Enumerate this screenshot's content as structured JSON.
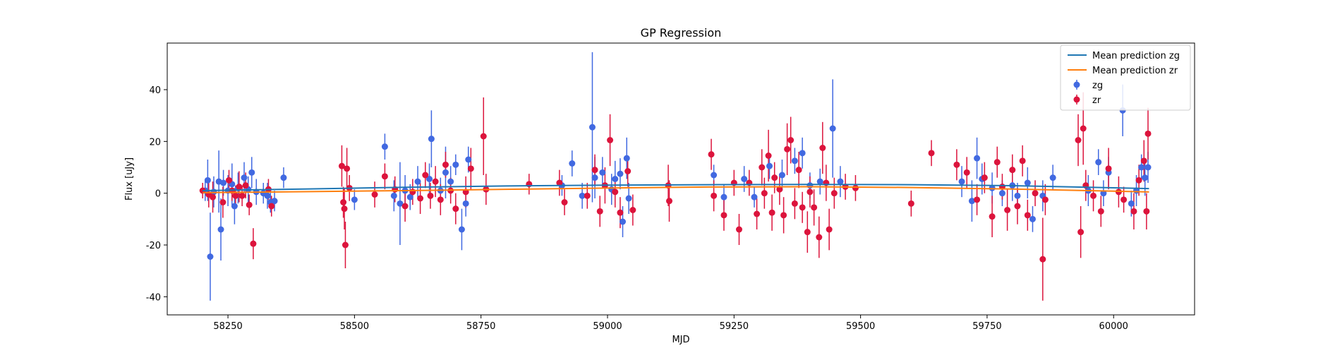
{
  "chart_data": {
    "type": "scatter",
    "title": "GP Regression",
    "xlabel": "MJD",
    "ylabel": "Flux [uJy]",
    "xlim": [
      58130,
      60160
    ],
    "ylim": [
      -47,
      58
    ],
    "xticks": [
      58250,
      58500,
      58750,
      59000,
      59250,
      59500,
      59750,
      60000
    ],
    "yticks": [
      -40,
      -20,
      0,
      20,
      40
    ],
    "grid": false,
    "legend_position": "top-right",
    "legend": [
      {
        "label": "Mean prediction zg",
        "kind": "line",
        "color": "#1f77b4"
      },
      {
        "label": "Mean prediction zr",
        "kind": "line",
        "color": "#ff7f0e"
      },
      {
        "label": "zg",
        "kind": "errorbar",
        "color": "#4169e1"
      },
      {
        "label": "zr",
        "kind": "errorbar",
        "color": "#dc143c"
      }
    ],
    "lines": [
      {
        "name": "Mean prediction zg",
        "color": "#1f77b4",
        "x": [
          58200,
          58400,
          58600,
          58800,
          59000,
          59200,
          59400,
          59600,
          59800,
          60000,
          60070
        ],
        "y": [
          1.0,
          1.6,
          2.3,
          2.8,
          3.1,
          3.3,
          3.4,
          3.3,
          2.9,
          2.1,
          1.8
        ]
      },
      {
        "name": "Mean prediction zr",
        "color": "#ff7f0e",
        "x": [
          58200,
          58400,
          58600,
          58800,
          59000,
          59200,
          59400,
          59600,
          59800,
          60000,
          60070
        ],
        "y": [
          0.2,
          0.6,
          1.0,
          1.5,
          2.0,
          2.4,
          2.5,
          2.2,
          1.6,
          0.8,
          0.5
        ]
      }
    ],
    "series": [
      {
        "name": "zg",
        "color": "#4169e1",
        "points": [
          [
            58205,
            1.0,
            4
          ],
          [
            58210,
            5.0,
            8
          ],
          [
            58215,
            -24.5,
            17
          ],
          [
            58222,
            0.5,
            6
          ],
          [
            58232,
            4.5,
            12
          ],
          [
            58236,
            -14.0,
            12
          ],
          [
            58241,
            4.0,
            5
          ],
          [
            58250,
            1.0,
            6
          ],
          [
            58258,
            3.5,
            8
          ],
          [
            58263,
            -5.0,
            7
          ],
          [
            58270,
            2.0,
            6
          ],
          [
            58282,
            6.0,
            6
          ],
          [
            58290,
            1.5,
            5
          ],
          [
            58297,
            8.0,
            6
          ],
          [
            58306,
            0.5,
            5
          ],
          [
            58320,
            0.0,
            4
          ],
          [
            58328,
            -1.0,
            5
          ],
          [
            58334,
            -3.5,
            4
          ],
          [
            58342,
            -3.0,
            4
          ],
          [
            58360,
            6.0,
            4
          ],
          [
            58500,
            -2.5,
            4
          ],
          [
            58560,
            18.0,
            5
          ],
          [
            58578,
            -1.0,
            6
          ],
          [
            58590,
            -4.0,
            16
          ],
          [
            58600,
            1.0,
            6
          ],
          [
            58610,
            -1.5,
            5
          ],
          [
            58625,
            4.5,
            6
          ],
          [
            58648,
            5.5,
            6
          ],
          [
            58652,
            21.0,
            11
          ],
          [
            58670,
            1.0,
            5
          ],
          [
            58680,
            8.0,
            10
          ],
          [
            58690,
            4.5,
            6
          ],
          [
            58700,
            11.0,
            4
          ],
          [
            58712,
            -14.0,
            8
          ],
          [
            58720,
            -4.0,
            5
          ],
          [
            58725,
            13.0,
            5
          ],
          [
            58910,
            3.0,
            4
          ],
          [
            58930,
            11.5,
            5
          ],
          [
            58950,
            -1.0,
            5
          ],
          [
            58970,
            25.5,
            29
          ],
          [
            58975,
            6.0,
            8
          ],
          [
            58990,
            8.0,
            6
          ],
          [
            59008,
            1.5,
            6
          ],
          [
            59015,
            5.5,
            7
          ],
          [
            59025,
            7.5,
            6
          ],
          [
            59030,
            -11.0,
            6
          ],
          [
            59038,
            13.5,
            8
          ],
          [
            59042,
            -2.0,
            6
          ],
          [
            59210,
            7.0,
            4
          ],
          [
            59230,
            -1.5,
            5
          ],
          [
            59270,
            5.5,
            5
          ],
          [
            59290,
            -1.5,
            4
          ],
          [
            59320,
            10.5,
            5
          ],
          [
            59345,
            7.0,
            6
          ],
          [
            59370,
            12.5,
            5
          ],
          [
            59385,
            15.5,
            6
          ],
          [
            59400,
            3.0,
            5
          ],
          [
            59420,
            4.5,
            5
          ],
          [
            59445,
            25.0,
            19
          ],
          [
            59460,
            4.5,
            6
          ],
          [
            59700,
            4.5,
            6
          ],
          [
            59720,
            -3.0,
            8
          ],
          [
            59730,
            13.5,
            8
          ],
          [
            59740,
            5.5,
            6
          ],
          [
            59760,
            2.0,
            6
          ],
          [
            59780,
            0.0,
            5
          ],
          [
            59800,
            3.0,
            6
          ],
          [
            59810,
            -1.0,
            5
          ],
          [
            59830,
            4.0,
            6
          ],
          [
            59840,
            -10.0,
            5
          ],
          [
            59860,
            -1.0,
            6
          ],
          [
            59880,
            6.0,
            5
          ],
          [
            59950,
            1.0,
            6
          ],
          [
            59970,
            12.0,
            5
          ],
          [
            59980,
            0.0,
            5
          ],
          [
            59990,
            8.0,
            6
          ],
          [
            60018,
            32.0,
            10
          ],
          [
            60035,
            -4.0,
            5
          ],
          [
            60045,
            1.0,
            6
          ],
          [
            60055,
            10.0,
            5
          ],
          [
            60062,
            6.0,
            7
          ],
          [
            60068,
            10.0,
            6
          ]
        ]
      },
      {
        "name": "zr",
        "color": "#dc143c",
        "points": [
          [
            58200,
            1.0,
            3
          ],
          [
            58212,
            -0.5,
            5
          ],
          [
            58220,
            -1.5,
            6
          ],
          [
            58240,
            -3.5,
            6
          ],
          [
            58252,
            5.0,
            4
          ],
          [
            58258,
            1.0,
            4
          ],
          [
            58265,
            -1.0,
            4
          ],
          [
            58272,
            2.5,
            6
          ],
          [
            58278,
            -1.0,
            4
          ],
          [
            58285,
            3.0,
            5
          ],
          [
            58292,
            -4.5,
            4
          ],
          [
            58300,
            -19.5,
            6
          ],
          [
            58330,
            1.5,
            4
          ],
          [
            58336,
            -5.0,
            4
          ],
          [
            58475,
            10.5,
            8
          ],
          [
            58478,
            -3.5,
            6
          ],
          [
            58480,
            -6.0,
            8
          ],
          [
            58482,
            -20.0,
            9
          ],
          [
            58485,
            9.5,
            8
          ],
          [
            58490,
            2.0,
            5
          ],
          [
            58540,
            -0.5,
            5
          ],
          [
            58560,
            6.5,
            5
          ],
          [
            58580,
            1.5,
            5
          ],
          [
            58600,
            -5.0,
            6
          ],
          [
            58615,
            0.5,
            5
          ],
          [
            58630,
            -2.0,
            6
          ],
          [
            58640,
            7.0,
            5
          ],
          [
            58650,
            -1.0,
            5
          ],
          [
            58660,
            4.5,
            6
          ],
          [
            58670,
            -2.5,
            6
          ],
          [
            58680,
            11.0,
            5
          ],
          [
            58690,
            1.0,
            5
          ],
          [
            58700,
            -6.0,
            6
          ],
          [
            58720,
            0.5,
            6
          ],
          [
            58730,
            9.5,
            8
          ],
          [
            58755,
            22.0,
            15
          ],
          [
            58760,
            1.5,
            6
          ],
          [
            58845,
            3.5,
            4
          ],
          [
            58905,
            4.0,
            5
          ],
          [
            58915,
            -3.5,
            5
          ],
          [
            58960,
            -1.0,
            5
          ],
          [
            58975,
            9.0,
            6
          ],
          [
            58985,
            -7.0,
            6
          ],
          [
            58995,
            3.0,
            7
          ],
          [
            59005,
            20.5,
            10
          ],
          [
            59015,
            0.5,
            6
          ],
          [
            59025,
            -7.5,
            6
          ],
          [
            59040,
            8.5,
            6
          ],
          [
            59050,
            -6.5,
            6
          ],
          [
            59120,
            3.0,
            8
          ],
          [
            59122,
            -3.0,
            8
          ],
          [
            59205,
            15.0,
            6
          ],
          [
            59210,
            -1.0,
            6
          ],
          [
            59230,
            -8.5,
            6
          ],
          [
            59250,
            4.0,
            5
          ],
          [
            59260,
            -14.0,
            6
          ],
          [
            59280,
            4.0,
            5
          ],
          [
            59295,
            -8.0,
            6
          ],
          [
            59305,
            10.0,
            7
          ],
          [
            59310,
            0.0,
            6
          ],
          [
            59318,
            14.5,
            10
          ],
          [
            59325,
            -7.5,
            7
          ],
          [
            59330,
            6.0,
            6
          ],
          [
            59340,
            1.5,
            6
          ],
          [
            59348,
            -8.5,
            7
          ],
          [
            59355,
            17.0,
            10
          ],
          [
            59362,
            20.5,
            9
          ],
          [
            59370,
            -4.0,
            6
          ],
          [
            59378,
            9.0,
            7
          ],
          [
            59385,
            -5.5,
            6
          ],
          [
            59395,
            -15.0,
            8
          ],
          [
            59400,
            0.5,
            6
          ],
          [
            59408,
            -5.5,
            7
          ],
          [
            59418,
            -17.0,
            8
          ],
          [
            59425,
            17.5,
            10
          ],
          [
            59432,
            4.0,
            7
          ],
          [
            59438,
            -14.0,
            8
          ],
          [
            59448,
            0.0,
            6
          ],
          [
            59470,
            2.5,
            5
          ],
          [
            59490,
            2.0,
            5
          ],
          [
            59600,
            -4.0,
            5
          ],
          [
            59640,
            15.5,
            5
          ],
          [
            59690,
            11.0,
            6
          ],
          [
            59710,
            8.0,
            6
          ],
          [
            59730,
            -2.5,
            6
          ],
          [
            59745,
            6.0,
            6
          ],
          [
            59760,
            -9.0,
            8
          ],
          [
            59770,
            12.0,
            6
          ],
          [
            59780,
            2.5,
            5
          ],
          [
            59790,
            -6.5,
            8
          ],
          [
            59800,
            9.0,
            6
          ],
          [
            59810,
            -5.0,
            7
          ],
          [
            59820,
            12.5,
            6
          ],
          [
            59830,
            -8.5,
            6
          ],
          [
            59845,
            0.0,
            5
          ],
          [
            59860,
            -25.5,
            16
          ],
          [
            59865,
            -2.5,
            6
          ],
          [
            59930,
            20.5,
            10
          ],
          [
            59935,
            -15.0,
            10
          ],
          [
            59940,
            25.0,
            14
          ],
          [
            59945,
            3.0,
            6
          ],
          [
            59960,
            -1.0,
            6
          ],
          [
            59975,
            -7.0,
            6
          ],
          [
            59990,
            9.5,
            8
          ],
          [
            60010,
            0.5,
            6
          ],
          [
            60020,
            -2.5,
            5
          ],
          [
            60040,
            -7.0,
            7
          ],
          [
            60050,
            5.0,
            6
          ],
          [
            60060,
            12.5,
            8
          ],
          [
            60065,
            -7.0,
            7
          ],
          [
            60068,
            23.0,
            10
          ]
        ]
      }
    ]
  }
}
